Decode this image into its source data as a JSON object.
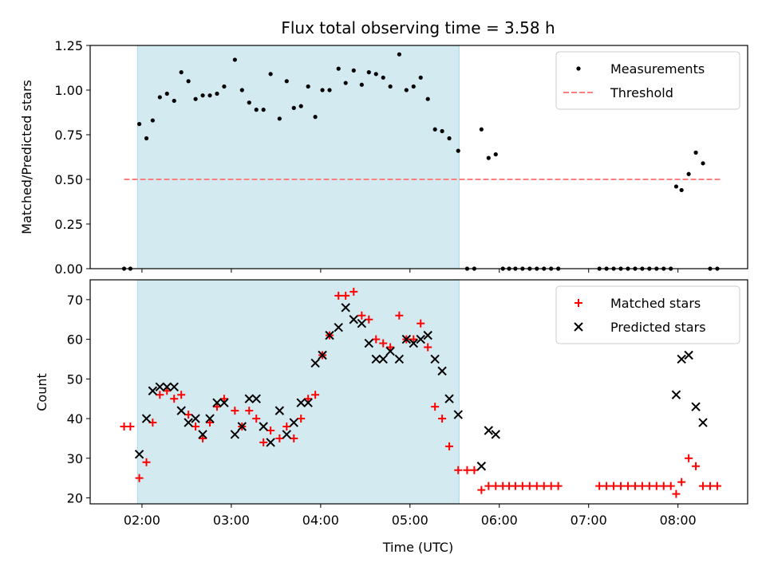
{
  "chart_data": {
    "title": "Flux total observing time = 3.58 h",
    "xlabel": "Time (UTC)",
    "x_unit": "hours UTC",
    "xlim": [
      1.42,
      8.78
    ],
    "x_ticks": [
      {
        "value": 2.0,
        "label": "02:00"
      },
      {
        "value": 3.0,
        "label": "03:00"
      },
      {
        "value": 4.0,
        "label": "04:00"
      },
      {
        "value": 5.0,
        "label": "05:00"
      },
      {
        "value": 6.0,
        "label": "06:00"
      },
      {
        "value": 7.0,
        "label": "07:00"
      },
      {
        "value": 8.0,
        "label": "08:00"
      }
    ],
    "shaded_span": {
      "x0": 1.95,
      "x1": 5.55,
      "color": "#d3eaf1"
    },
    "panels": [
      {
        "type": "scatter",
        "ylabel": "Matched/Predicted stars",
        "ylim": [
          0,
          1.25
        ],
        "yticks": [
          "0.00",
          "0.25",
          "0.50",
          "0.75",
          "1.00",
          "1.25"
        ],
        "legend_position": "top-right",
        "threshold": {
          "name": "Threshold",
          "y": 0.5,
          "x0": 1.8,
          "x1": 8.48,
          "color": "#ff8080"
        },
        "series": [
          {
            "name": "Measurements",
            "marker": "dot",
            "color": "#000000",
            "x": [
              1.8,
              1.87,
              1.97,
              2.05,
              2.12,
              2.2,
              2.28,
              2.36,
              2.44,
              2.52,
              2.6,
              2.68,
              2.76,
              2.84,
              2.92,
              3.04,
              3.12,
              3.2,
              3.28,
              3.36,
              3.44,
              3.54,
              3.62,
              3.7,
              3.78,
              3.86,
              3.94,
              4.02,
              4.1,
              4.2,
              4.28,
              4.37,
              4.46,
              4.54,
              4.62,
              4.7,
              4.78,
              4.88,
              4.96,
              5.04,
              5.12,
              5.2,
              5.28,
              5.36,
              5.44,
              5.54,
              5.64,
              5.72,
              5.8,
              5.88,
              5.96,
              6.04,
              6.11,
              6.18,
              6.26,
              6.34,
              6.42,
              6.5,
              6.58,
              6.66,
              7.12,
              7.2,
              7.28,
              7.36,
              7.44,
              7.52,
              7.6,
              7.68,
              7.76,
              7.84,
              7.92,
              7.98,
              8.04,
              8.12,
              8.2,
              8.28,
              8.36,
              8.44
            ],
            "y": [
              0.0,
              0.0,
              0.81,
              0.73,
              0.83,
              0.96,
              0.98,
              0.94,
              1.1,
              1.05,
              0.95,
              0.97,
              0.97,
              0.98,
              1.02,
              1.17,
              1.0,
              0.93,
              0.89,
              0.89,
              1.09,
              0.84,
              1.05,
              0.9,
              0.91,
              1.02,
              0.85,
              1.0,
              1.0,
              1.12,
              1.04,
              1.11,
              1.03,
              1.1,
              1.09,
              1.07,
              1.02,
              1.2,
              1.0,
              1.02,
              1.07,
              0.95,
              0.78,
              0.77,
              0.73,
              0.66,
              0.0,
              0.0,
              0.78,
              0.62,
              0.64,
              0.0,
              0.0,
              0.0,
              0.0,
              0.0,
              0.0,
              0.0,
              0.0,
              0.0,
              0.0,
              0.0,
              0.0,
              0.0,
              0.0,
              0.0,
              0.0,
              0.0,
              0.0,
              0.0,
              0.0,
              0.46,
              0.44,
              0.53,
              0.65,
              0.59,
              0.0,
              0.0
            ]
          }
        ]
      },
      {
        "type": "scatter",
        "ylabel": "Count",
        "ylim": [
          18.5,
          75
        ],
        "yticks": [
          "20",
          "30",
          "40",
          "50",
          "60",
          "70"
        ],
        "legend_position": "top-right",
        "series": [
          {
            "name": "Matched stars",
            "marker": "plus",
            "color": "#ff0000",
            "x": [
              1.8,
              1.87,
              1.97,
              2.05,
              2.12,
              2.2,
              2.28,
              2.36,
              2.44,
              2.52,
              2.6,
              2.68,
              2.76,
              2.84,
              2.92,
              3.04,
              3.12,
              3.2,
              3.28,
              3.36,
              3.44,
              3.54,
              3.62,
              3.7,
              3.78,
              3.86,
              3.94,
              4.02,
              4.1,
              4.2,
              4.28,
              4.37,
              4.46,
              4.54,
              4.62,
              4.7,
              4.78,
              4.88,
              4.96,
              5.04,
              5.12,
              5.2,
              5.28,
              5.36,
              5.44,
              5.54,
              5.64,
              5.72,
              5.8,
              5.88,
              5.96,
              6.04,
              6.11,
              6.18,
              6.26,
              6.34,
              6.42,
              6.5,
              6.58,
              6.66,
              7.12,
              7.2,
              7.28,
              7.36,
              7.44,
              7.52,
              7.6,
              7.68,
              7.76,
              7.84,
              7.92,
              7.98,
              8.04,
              8.12,
              8.2,
              8.28,
              8.36,
              8.44
            ],
            "y": [
              38,
              38,
              25,
              29,
              39,
              46,
              47,
              45,
              46,
              41,
              38,
              35,
              39,
              43,
              45,
              42,
              38,
              42,
              40,
              34,
              37,
              35,
              38,
              35,
              40,
              45,
              46,
              56,
              61,
              71,
              71,
              72,
              66,
              65,
              60,
              59,
              58,
              66,
              60,
              60,
              64,
              58,
              43,
              40,
              33,
              27,
              27,
              27,
              22,
              23,
              23,
              23,
              23,
              23,
              23,
              23,
              23,
              23,
              23,
              23,
              23,
              23,
              23,
              23,
              23,
              23,
              23,
              23,
              23,
              23,
              23,
              21,
              24,
              30,
              28,
              23,
              23,
              23
            ]
          },
          {
            "name": "Predicted stars",
            "marker": "x",
            "color": "#000000",
            "x": [
              1.97,
              2.05,
              2.12,
              2.2,
              2.28,
              2.36,
              2.44,
              2.52,
              2.6,
              2.68,
              2.76,
              2.84,
              2.92,
              3.04,
              3.12,
              3.2,
              3.28,
              3.36,
              3.44,
              3.54,
              3.62,
              3.7,
              3.78,
              3.86,
              3.94,
              4.02,
              4.1,
              4.2,
              4.28,
              4.37,
              4.46,
              4.54,
              4.62,
              4.7,
              4.78,
              4.88,
              4.96,
              5.04,
              5.12,
              5.2,
              5.28,
              5.36,
              5.44,
              5.54,
              5.8,
              5.88,
              5.96,
              7.98,
              8.04,
              8.12,
              8.2,
              8.28
            ],
            "y": [
              31,
              40,
              47,
              48,
              48,
              48,
              42,
              39,
              40,
              36,
              40,
              44,
              44,
              36,
              38,
              45,
              45,
              38,
              34,
              42,
              36,
              39,
              44,
              44,
              54,
              56,
              61,
              63,
              68,
              65,
              64,
              59,
              55,
              55,
              57,
              55,
              60,
              59,
              60,
              61,
              55,
              52,
              45,
              41,
              28,
              37,
              36,
              46,
              55,
              56,
              43,
              39
            ]
          }
        ]
      }
    ]
  }
}
